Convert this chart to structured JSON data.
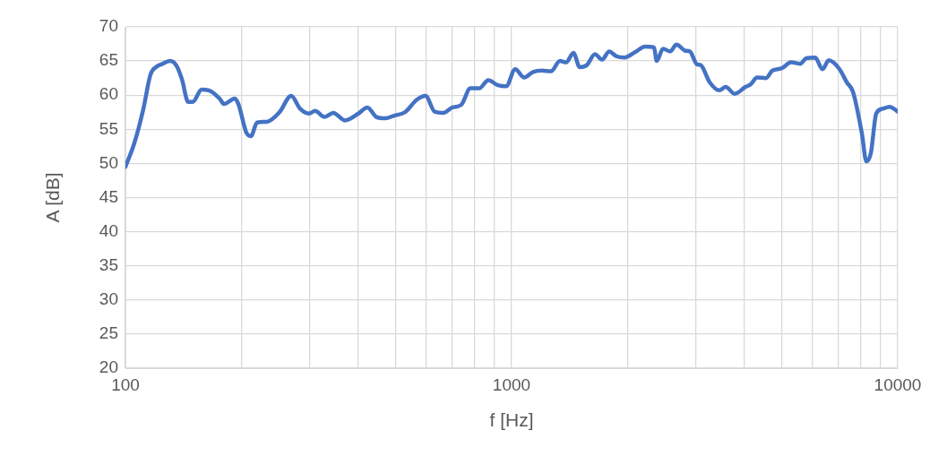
{
  "chart_data": {
    "type": "line",
    "xlabel": "f [Hz]",
    "ylabel": "A [dB]",
    "log": "x",
    "grid": true,
    "legend": false,
    "marker": "none",
    "line_style": "solid",
    "xlim": [
      100,
      10000
    ],
    "ylim": [
      20,
      70
    ],
    "xticks": [
      100,
      {
        "value": 200,
        "label": null
      },
      {
        "value": 300,
        "label": null
      },
      {
        "value": 400,
        "label": null
      },
      {
        "value": 500,
        "label": null
      },
      {
        "value": 600,
        "label": null
      },
      {
        "value": 700,
        "label": null
      },
      {
        "value": 800,
        "label": null
      },
      {
        "value": 900,
        "label": null
      },
      1000,
      {
        "value": 2000,
        "label": null
      },
      {
        "value": 3000,
        "label": null
      },
      {
        "value": 4000,
        "label": null
      },
      {
        "value": 5000,
        "label": null
      },
      {
        "value": 6000,
        "label": null
      },
      {
        "value": 7000,
        "label": null
      },
      {
        "value": 8000,
        "label": null
      },
      {
        "value": 9000,
        "label": null
      },
      10000
    ],
    "yticks": [
      20,
      25,
      30,
      35,
      40,
      45,
      50,
      55,
      60,
      65,
      70
    ],
    "series": [
      {
        "color": "#4472c4",
        "x": [
          100,
          105.5,
          111.3,
          116.1,
          120.6,
          123.8,
          130.6,
          135.6,
          140.1,
          145.4,
          149.3,
          157.5,
          164.4,
          175.3,
          180,
          191.9,
          196.1,
          205.7,
          211.3,
          219.3,
          232.6,
          250.6,
          268.7,
          283.5,
          299,
          310,
          327.4,
          345.3,
          370.2,
          401.1,
          423.2,
          446.4,
          470.9,
          496.6,
          529.6,
          567.6,
          598.8,
          631.6,
          666.3,
          702.8,
          741.4,
          782.1,
          825,
          870.2,
          918,
          968.5,
          1021.6,
          1077.7,
          1136.8,
          1199.2,
          1265,
          1334.4,
          1385,
          1446,
          1501,
          1566,
          1644,
          1715,
          1790,
          1868,
          1960,
          2101,
          2216,
          2338,
          2376,
          2467,
          2574,
          2673,
          2819,
          2895,
          3022,
          3088,
          3257,
          3453,
          3585,
          3782,
          4033,
          4164,
          4323,
          4560,
          4734,
          4994,
          5297,
          5587,
          5798,
          6116,
          6386,
          6629,
          7068,
          7377,
          7656,
          8075,
          8294,
          8518,
          8797,
          9131,
          9530,
          10000
        ],
        "values": [
          49.5,
          53,
          58,
          63,
          64.2,
          64.5,
          65,
          64.3,
          62.3,
          59,
          59,
          60.8,
          60.7,
          59.5,
          58.7,
          59.5,
          58.7,
          54.5,
          54,
          56,
          56.1,
          57.5,
          59.9,
          58,
          57.3,
          57.7,
          56.8,
          57.4,
          56.3,
          57.3,
          58.2,
          56.8,
          56.6,
          57,
          57.5,
          59.3,
          59.9,
          57.6,
          57.4,
          58.2,
          58.6,
          61,
          61,
          62.2,
          61.5,
          61.3,
          63.8,
          62.6,
          63.4,
          63.6,
          63.5,
          65,
          64.8,
          66.2,
          64.1,
          64.4,
          66,
          65.2,
          66.4,
          65.7,
          65.5,
          66.4,
          67.1,
          67,
          65,
          66.8,
          66.4,
          67.4,
          66.5,
          66.4,
          64.5,
          64.4,
          61.9,
          60.7,
          61.2,
          60.2,
          61.2,
          61.6,
          62.6,
          62.5,
          63.6,
          63.9,
          64.8,
          64.6,
          65.4,
          65.5,
          63.8,
          65.1,
          63.8,
          61.9,
          60.5,
          54.4,
          50.3,
          51.5,
          57.3,
          58,
          58.3,
          57.6
        ]
      }
    ]
  }
}
